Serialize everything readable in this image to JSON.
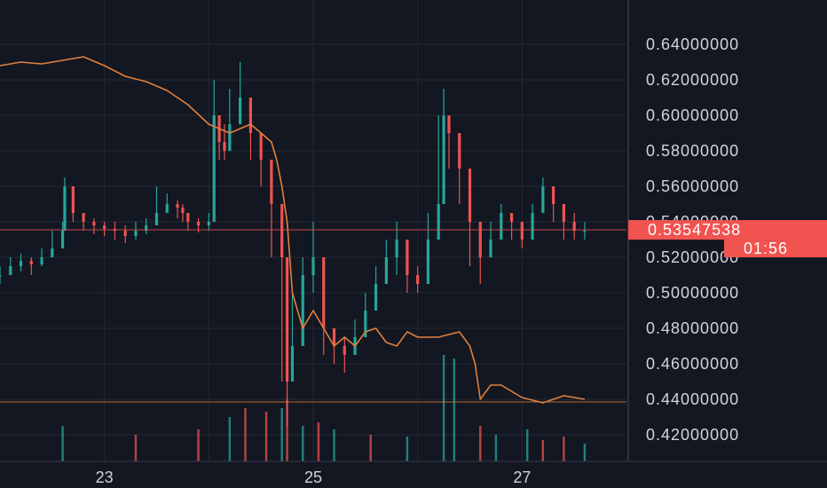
{
  "chart_data": {
    "type": "line",
    "title": "",
    "y_axis": {
      "ylim": [
        0.405,
        0.665
      ],
      "ticks": [
        "0.42000000",
        "0.44000000",
        "0.46000000",
        "0.48000000",
        "0.50000000",
        "0.52000000",
        "0.54000000",
        "0.56000000",
        "0.58000000",
        "0.60000000",
        "0.62000000",
        "0.64000000"
      ],
      "tick_values": [
        0.42,
        0.44,
        0.46,
        0.48,
        0.5,
        0.52,
        0.54,
        0.56,
        0.58,
        0.6,
        0.62,
        0.64
      ]
    },
    "x_axis": {
      "xlim": [
        22.0,
        28.0
      ],
      "ticks": [
        "23",
        "25",
        "27"
      ],
      "tick_values": [
        23,
        25,
        27
      ]
    },
    "grid": true,
    "current_price": {
      "value": 0.53547538,
      "label": "0.53547538",
      "countdown": "01:56",
      "color": "#f05350"
    },
    "reference_line": {
      "value": 0.4385,
      "color": "#e0803c"
    },
    "series": [
      {
        "kind": "candlestick",
        "up_color": "#26a69a",
        "down_color": "#ef5350",
        "x": [
          22.0,
          22.1,
          22.2,
          22.3,
          22.4,
          22.5,
          22.6,
          22.62,
          22.7,
          22.8,
          22.9,
          23.0,
          23.1,
          23.2,
          23.3,
          23.4,
          23.5,
          23.6,
          23.7,
          23.75,
          23.8,
          23.9,
          24.0,
          24.05,
          24.1,
          24.15,
          24.2,
          24.3,
          24.4,
          24.5,
          24.6,
          24.7,
          24.75,
          24.8,
          24.9,
          25.0,
          25.1,
          25.2,
          25.3,
          25.4,
          25.5,
          25.6,
          25.7,
          25.8,
          25.9,
          26.0,
          26.1,
          26.2,
          26.25,
          26.3,
          26.4,
          26.5,
          26.6,
          26.7,
          26.8,
          26.9,
          27.0,
          27.1,
          27.2,
          27.3,
          27.4,
          27.5,
          27.6
        ],
        "close": [
          0.51,
          0.515,
          0.518,
          0.516,
          0.52,
          0.525,
          0.535,
          0.56,
          0.545,
          0.54,
          0.538,
          0.536,
          0.535,
          0.532,
          0.535,
          0.538,
          0.545,
          0.55,
          0.548,
          0.545,
          0.54,
          0.538,
          0.54,
          0.6,
          0.585,
          0.58,
          0.595,
          0.61,
          0.59,
          0.575,
          0.55,
          0.52,
          0.45,
          0.47,
          0.51,
          0.52,
          0.48,
          0.47,
          0.465,
          0.475,
          0.49,
          0.505,
          0.52,
          0.53,
          0.51,
          0.505,
          0.53,
          0.55,
          0.6,
          0.59,
          0.57,
          0.54,
          0.52,
          0.53,
          0.545,
          0.54,
          0.53,
          0.545,
          0.56,
          0.55,
          0.54,
          0.535,
          0.535
        ],
        "high": [
          0.515,
          0.52,
          0.522,
          0.52,
          0.525,
          0.535,
          0.54,
          0.565,
          0.55,
          0.545,
          0.542,
          0.54,
          0.54,
          0.538,
          0.54,
          0.542,
          0.56,
          0.556,
          0.552,
          0.55,
          0.545,
          0.542,
          0.545,
          0.62,
          0.6,
          0.595,
          0.615,
          0.63,
          0.6,
          0.58,
          0.56,
          0.53,
          0.47,
          0.5,
          0.52,
          0.54,
          0.49,
          0.48,
          0.475,
          0.485,
          0.5,
          0.515,
          0.53,
          0.54,
          0.52,
          0.515,
          0.545,
          0.6,
          0.615,
          0.6,
          0.58,
          0.55,
          0.54,
          0.54,
          0.55,
          0.545,
          0.54,
          0.55,
          0.565,
          0.56,
          0.55,
          0.545,
          0.54
        ],
        "low": [
          0.505,
          0.51,
          0.512,
          0.51,
          0.515,
          0.52,
          0.53,
          0.545,
          0.54,
          0.535,
          0.533,
          0.532,
          0.53,
          0.528,
          0.53,
          0.533,
          0.54,
          0.545,
          0.542,
          0.54,
          0.535,
          0.534,
          0.535,
          0.585,
          0.575,
          0.575,
          0.58,
          0.595,
          0.575,
          0.56,
          0.52,
          0.45,
          0.425,
          0.45,
          0.49,
          0.5,
          0.465,
          0.46,
          0.455,
          0.465,
          0.48,
          0.495,
          0.505,
          0.51,
          0.5,
          0.5,
          0.51,
          0.54,
          0.58,
          0.57,
          0.55,
          0.515,
          0.505,
          0.52,
          0.53,
          0.53,
          0.525,
          0.535,
          0.545,
          0.54,
          0.53,
          0.53,
          0.53
        ]
      },
      {
        "kind": "line",
        "color": "#e0803c",
        "x": [
          22.0,
          22.2,
          22.4,
          22.6,
          22.8,
          23.0,
          23.2,
          23.4,
          23.6,
          23.8,
          24.0,
          24.2,
          24.4,
          24.5,
          24.6,
          24.65,
          24.7,
          24.75,
          24.8,
          24.9,
          25.0,
          25.1,
          25.2,
          25.3,
          25.4,
          25.5,
          25.6,
          25.7,
          25.8,
          25.9,
          26.0,
          26.2,
          26.4,
          26.5,
          26.55,
          26.6,
          26.7,
          26.8,
          27.0,
          27.2,
          27.4,
          27.6
        ],
        "y": [
          0.628,
          0.63,
          0.629,
          0.631,
          0.633,
          0.628,
          0.622,
          0.619,
          0.614,
          0.606,
          0.595,
          0.59,
          0.595,
          0.59,
          0.585,
          0.575,
          0.56,
          0.54,
          0.5,
          0.48,
          0.49,
          0.48,
          0.47,
          0.475,
          0.47,
          0.478,
          0.48,
          0.472,
          0.47,
          0.478,
          0.475,
          0.475,
          0.478,
          0.47,
          0.46,
          0.44,
          0.448,
          0.448,
          0.441,
          0.438,
          0.442,
          0.44
        ]
      },
      {
        "kind": "volume",
        "up_color": "#26a69a",
        "down_color": "#ef5350",
        "x": [
          22.6,
          23.3,
          23.9,
          24.2,
          24.35,
          24.55,
          24.7,
          24.75,
          24.9,
          25.05,
          25.2,
          25.55,
          25.9,
          26.25,
          26.35,
          26.6,
          26.75,
          27.05,
          27.2,
          27.4,
          27.6
        ],
        "y": [
          0.02,
          0.015,
          0.018,
          0.025,
          0.03,
          0.028,
          0.03,
          0.035,
          0.02,
          0.022,
          0.018,
          0.015,
          0.014,
          0.06,
          0.058,
          0.02,
          0.015,
          0.018,
          0.012,
          0.014,
          0.01
        ],
        "dir": [
          "u",
          "d",
          "d",
          "u",
          "d",
          "d",
          "u",
          "d",
          "u",
          "d",
          "u",
          "d",
          "u",
          "u",
          "u",
          "d",
          "u",
          "u",
          "d",
          "d",
          "u"
        ]
      }
    ]
  }
}
